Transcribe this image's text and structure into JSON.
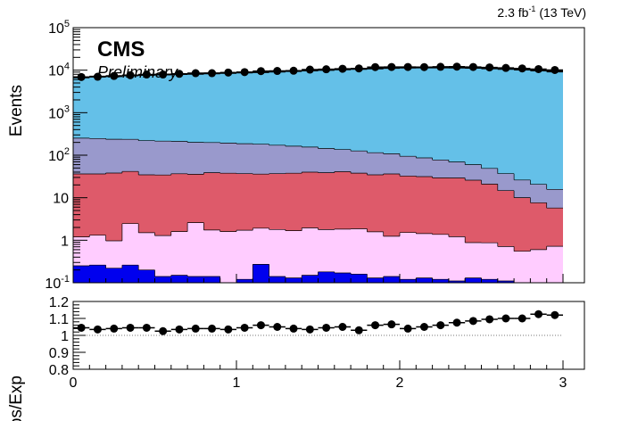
{
  "header": {
    "lumi_label": "2.3 fb",
    "lumi_exp": "-1",
    "energy_label": " (13 TeV)",
    "experiment": "CMS",
    "status": "Preliminary"
  },
  "chart_data": [
    {
      "type": "area",
      "panel": "main",
      "ylabel": "Events",
      "yscale": "log",
      "ylim": [
        0.1,
        100000
      ],
      "xlim": [
        0,
        3
      ],
      "y_ticks": [
        {
          "value": 0.1,
          "base": "10",
          "exp": "-1"
        },
        {
          "value": 1,
          "label": "1"
        },
        {
          "value": 10,
          "label": "10"
        },
        {
          "value": 100,
          "base": "10",
          "exp": "2"
        },
        {
          "value": 1000,
          "base": "10",
          "exp": "3"
        },
        {
          "value": 10000,
          "base": "10",
          "exp": "4"
        },
        {
          "value": 100000,
          "base": "10",
          "exp": "5"
        }
      ],
      "bin_width": 0.1,
      "x": [
        0.0,
        0.1,
        0.2,
        0.3,
        0.4,
        0.5,
        0.6,
        0.7,
        0.8,
        0.9,
        1.0,
        1.1,
        1.2,
        1.3,
        1.4,
        1.5,
        1.6,
        1.7,
        1.8,
        1.9,
        2.0,
        2.1,
        2.2,
        2.3,
        2.4,
        2.5,
        2.6,
        2.7,
        2.8,
        2.9
      ],
      "series": [
        {
          "color": "#0000ee",
          "values": [
            0.25,
            0.26,
            0.22,
            0.26,
            0.2,
            0.14,
            0.15,
            0.14,
            0.14,
            0.1,
            0.12,
            0.27,
            0.14,
            0.13,
            0.15,
            0.18,
            0.17,
            0.16,
            0.13,
            0.14,
            0.12,
            0.13,
            0.12,
            0.11,
            0.13,
            0.12,
            0.11,
            0,
            0,
            0
          ]
        },
        {
          "color": "#ffccff",
          "values": [
            0.95,
            1.05,
            0.75,
            2.2,
            1.3,
            1.15,
            1.45,
            2.45,
            1.6,
            1.5,
            1.6,
            1.65,
            1.65,
            1.55,
            1.8,
            1.6,
            1.65,
            1.7,
            1.45,
            1.1,
            1.4,
            1.3,
            1.25,
            1.1,
            0.75,
            0.75,
            0.6,
            0.55,
            0.6,
            0.72
          ]
        },
        {
          "color": "#de5a6a",
          "values": [
            35,
            35,
            37,
            39,
            33,
            33,
            35,
            33,
            37,
            36,
            35,
            34,
            35,
            36,
            38,
            37,
            39,
            36,
            33,
            35,
            31,
            30,
            28,
            28,
            25,
            20,
            14,
            9.5,
            7,
            5
          ]
        },
        {
          "color": "#9999cc",
          "values": [
            215,
            210,
            200,
            195,
            185,
            180,
            175,
            165,
            160,
            155,
            150,
            145,
            135,
            125,
            115,
            105,
            95,
            88,
            80,
            72,
            62,
            55,
            48,
            40,
            34,
            28,
            22,
            16,
            13,
            10
          ]
        },
        {
          "color": "#64c0e8",
          "values": [
            6500,
            6800,
            7000,
            7300,
            7500,
            7700,
            7900,
            8000,
            8200,
            8400,
            8600,
            8800,
            9100,
            9400,
            9700,
            10000,
            10300,
            10600,
            10900,
            11200,
            11400,
            11500,
            11500,
            11400,
            11300,
            11000,
            10700,
            10300,
            9800,
            9300
          ]
        }
      ],
      "data_points": [
        {
          "x": 0.05,
          "y": 6900
        },
        {
          "x": 0.15,
          "y": 7000
        },
        {
          "x": 0.25,
          "y": 7300
        },
        {
          "x": 0.35,
          "y": 7600
        },
        {
          "x": 0.45,
          "y": 7900
        },
        {
          "x": 0.55,
          "y": 7900
        },
        {
          "x": 0.65,
          "y": 8200
        },
        {
          "x": 0.75,
          "y": 8500
        },
        {
          "x": 0.85,
          "y": 8500
        },
        {
          "x": 0.95,
          "y": 8800
        },
        {
          "x": 1.05,
          "y": 9000
        },
        {
          "x": 1.15,
          "y": 9500
        },
        {
          "x": 1.25,
          "y": 9600
        },
        {
          "x": 1.35,
          "y": 9700
        },
        {
          "x": 1.45,
          "y": 10300
        },
        {
          "x": 1.55,
          "y": 10500
        },
        {
          "x": 1.65,
          "y": 10800
        },
        {
          "x": 1.75,
          "y": 11000
        },
        {
          "x": 1.85,
          "y": 11800
        },
        {
          "x": 1.95,
          "y": 11900
        },
        {
          "x": 2.05,
          "y": 11900
        },
        {
          "x": 2.15,
          "y": 11800
        },
        {
          "x": 2.25,
          "y": 12000
        },
        {
          "x": 2.35,
          "y": 12100
        },
        {
          "x": 2.45,
          "y": 11900
        },
        {
          "x": 2.55,
          "y": 11600
        },
        {
          "x": 2.65,
          "y": 11300
        },
        {
          "x": 2.75,
          "y": 11000
        },
        {
          "x": 2.85,
          "y": 10600
        },
        {
          "x": 2.95,
          "y": 10100
        }
      ]
    },
    {
      "type": "scatter",
      "panel": "ratio",
      "ylabel": "Obs/Exp",
      "ylim": [
        0.8,
        1.2
      ],
      "xlim": [
        0,
        3
      ],
      "y_ticks": [
        "0.8",
        "0.9",
        "1",
        "1.1",
        "1.2"
      ],
      "x_ticks": [
        "0",
        "1",
        "2",
        "3"
      ],
      "reference_line": 1,
      "bin_width": 0.1,
      "x": [
        0.05,
        0.15,
        0.25,
        0.35,
        0.45,
        0.55,
        0.65,
        0.75,
        0.85,
        0.95,
        1.05,
        1.15,
        1.25,
        1.35,
        1.45,
        1.55,
        1.65,
        1.75,
        1.85,
        1.95,
        2.05,
        2.15,
        2.25,
        2.35,
        2.45,
        2.55,
        2.65,
        2.75,
        2.85,
        2.95
      ],
      "values": [
        1.045,
        1.035,
        1.04,
        1.045,
        1.045,
        1.025,
        1.035,
        1.04,
        1.04,
        1.035,
        1.045,
        1.06,
        1.05,
        1.04,
        1.035,
        1.045,
        1.05,
        1.03,
        1.06,
        1.065,
        1.04,
        1.05,
        1.06,
        1.075,
        1.085,
        1.095,
        1.1,
        1.1,
        1.125,
        1.12
      ]
    }
  ]
}
